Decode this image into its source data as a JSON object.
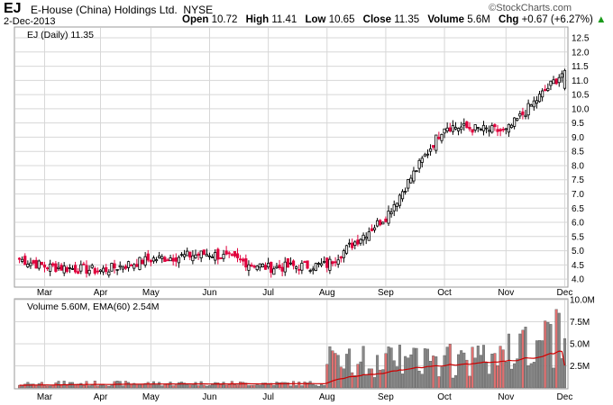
{
  "header": {
    "symbol": "EJ",
    "company": "E-House (China) Holdings Ltd.",
    "exchange": "NYSE",
    "date": "2-Dec-2013",
    "open_label": "Open",
    "open": "10.72",
    "high_label": "High",
    "high": "11.41",
    "low_label": "Low",
    "low": "10.65",
    "close_label": "Close",
    "close": "11.35",
    "volume_label": "Volume",
    "volume": "5.6M",
    "chg_label": "Chg",
    "chg": "+0.67 (+6.27%)",
    "chg_arrow": "▲",
    "logo": "©StockCharts.com"
  },
  "colors": {
    "up": "#000000",
    "down": "#e0003c",
    "vol_up": "#888888",
    "vol_down": "#e07070",
    "ema": "#cc0000",
    "grid": "#d7d7d7"
  },
  "chart_data": [
    {
      "type": "candlestick",
      "legend": "EJ (Daily) 11.35",
      "x_ticks": [
        "Mar",
        "Apr",
        "May",
        "Jun",
        "Jul",
        "Aug",
        "Sep",
        "Oct",
        "Nov",
        "Dec"
      ],
      "y_ticks": [
        4.0,
        4.5,
        5.0,
        5.5,
        6.0,
        6.5,
        7.0,
        7.5,
        8.0,
        8.5,
        9.0,
        9.5,
        10.0,
        10.5,
        11.0,
        11.5,
        12.0,
        12.5
      ],
      "ylim": [
        3.75,
        12.85
      ],
      "x": [
        "Feb",
        "Mar",
        "Apr",
        "May",
        "Jun",
        "Jul",
        "Aug",
        "Sep",
        "Oct",
        "Nov",
        "Dec"
      ],
      "close": [
        4.7,
        4.45,
        4.3,
        4.7,
        4.9,
        4.4,
        4.5,
        6.2,
        9.4,
        9.2,
        11.35
      ],
      "last_session": {
        "date": "2-Dec-2013",
        "open": 10.72,
        "high": 11.41,
        "low": 10.65,
        "close": 11.35
      }
    },
    {
      "type": "bar",
      "legend": "Volume 5.60M, EMA(60) 2.54M",
      "y_ticks": [
        "2.5M",
        "5.0M",
        "7.5M",
        "10.0M"
      ],
      "ylim": [
        0,
        10.0
      ],
      "last_volume_m": 5.6,
      "ema60_m": 2.54
    }
  ]
}
